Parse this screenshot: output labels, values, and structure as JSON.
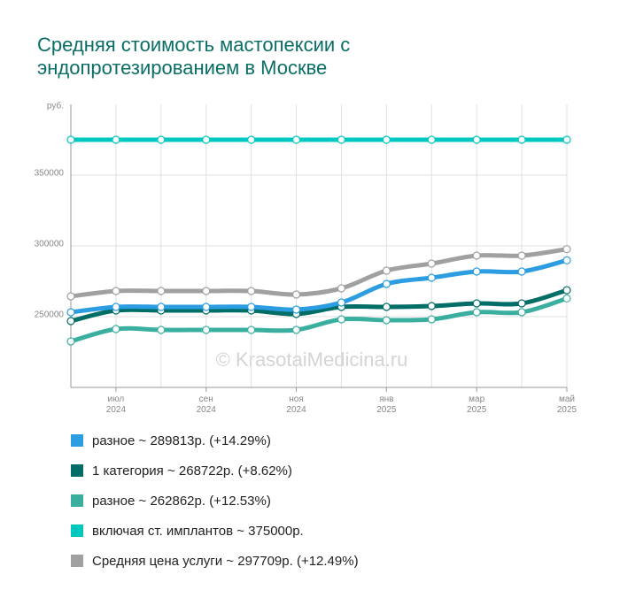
{
  "chart_data": {
    "type": "line",
    "title": "Средняя стоимость мастопексии с эндопротезированием в Москве",
    "y_label": "руб.",
    "watermark": "© KrasotaiMedicina.ru",
    "categories": [
      null,
      "июл 2024",
      null,
      "сен 2024",
      null,
      "ноя 2024",
      null,
      "янв 2025",
      null,
      "мар 2025",
      null,
      "май 2025"
    ],
    "ylim": [
      200000,
      400000
    ],
    "yticks": [
      250000,
      300000,
      350000
    ],
    "grid": true,
    "series": [
      {
        "name": "разное ~ 289813р. (+14.29%)",
        "color": "#2b9de0",
        "values": [
          253125,
          256875,
          256875,
          256875,
          256875,
          255000,
          260000,
          273125,
          277500,
          281875,
          281875,
          289813
        ]
      },
      {
        "name": "1 категория ~ 268722р. (+8.62%)",
        "color": "#006e66",
        "values": [
          246875,
          254375,
          254375,
          254375,
          254375,
          251875,
          256875,
          256875,
          257500,
          259375,
          259375,
          268722
        ]
      },
      {
        "name": "разное ~ 262862р. (+12.53%)",
        "color": "#3aafa0",
        "values": [
          232500,
          241250,
          240625,
          240625,
          240625,
          240625,
          248125,
          247500,
          248125,
          253125,
          253125,
          262862
        ]
      },
      {
        "name": "включая ст. имплантов ~ 375000р.",
        "color": "#00c8c0",
        "values": [
          375000,
          375000,
          375000,
          375000,
          375000,
          375000,
          375000,
          375000,
          375000,
          375000,
          375000,
          375000
        ]
      },
      {
        "name": "Средняя цена услуги ~ 297709р. (+12.49%)",
        "color": "#a0a0a0",
        "values": [
          264375,
          268125,
          268125,
          268125,
          268125,
          265625,
          270000,
          282500,
          287500,
          293125,
          293125,
          297709
        ]
      }
    ]
  }
}
